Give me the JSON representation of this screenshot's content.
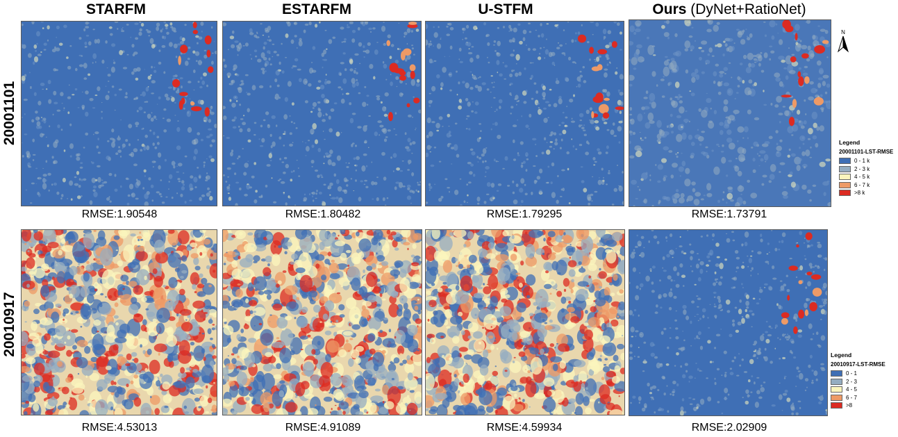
{
  "columns": [
    {
      "title": "STARFM",
      "suffix": ""
    },
    {
      "title": "ESTARFM",
      "suffix": ""
    },
    {
      "title": "U-STFM",
      "suffix": ""
    },
    {
      "title": "Ours",
      "suffix": " (DyNet+RatioNet)"
    }
  ],
  "rows": [
    {
      "label": "20001101",
      "rmse": [
        "RMSE:1.90548",
        "RMSE:1.80482",
        "RMSE:1.79295",
        "RMSE:1.73791"
      ],
      "legend": {
        "title": "Legend",
        "subtitle": "20001101-LST-RMSE",
        "items": [
          "0 - 1 k",
          "2 - 3 k",
          "4 - 5 k",
          "6 - 7 k",
          ">8 k"
        ]
      }
    },
    {
      "label": "20010917",
      "rmse": [
        "RMSE:4.53013",
        "RMSE:4.91089",
        "RMSE:4.59934",
        "RMSE:2.02909"
      ],
      "legend": {
        "title": "Legend",
        "subtitle": "20010917-LST-RMSE",
        "items": [
          "0 - 1",
          "2 - 3",
          "4 - 5",
          "6 - 7",
          ">8"
        ]
      }
    }
  ],
  "legend_colors": [
    "#3f6fb5",
    "#95adc1",
    "#fbf5bd",
    "#ee9a66",
    "#dc2b22"
  ],
  "north_arrow": {
    "label": "N",
    "icon": "north-arrow-icon"
  }
}
